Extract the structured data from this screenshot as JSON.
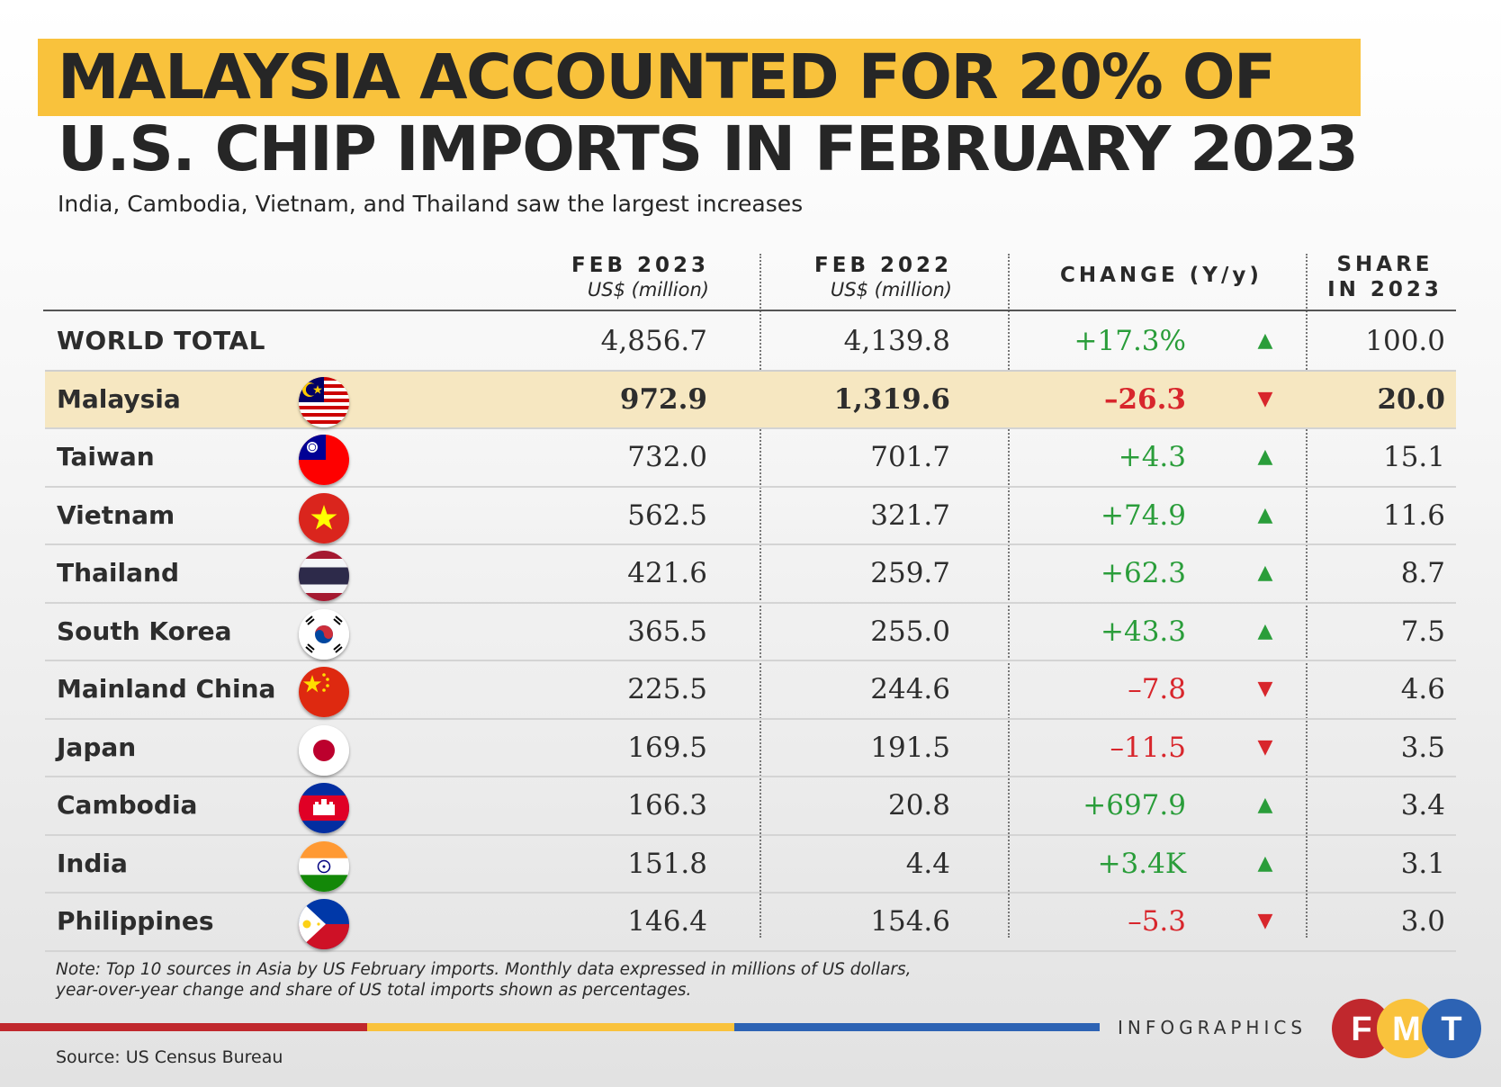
{
  "title_line1": "MALAYSIA ACCOUNTED FOR 20% OF",
  "title_line2": "U.S. CHIP IMPORTS IN FEBRUARY 2023",
  "subtitle": "India, Cambodia, Vietnam, and Thailand saw the largest increases",
  "headers": {
    "feb2023": "FEB 2023",
    "feb2023_unit": "US$ (million)",
    "feb2022": "FEB 2022",
    "feb2022_unit": "US$ (million)",
    "change": "CHANGE (Y/y)",
    "share_line1": "SHARE",
    "share_line2": "IN 2023"
  },
  "colors": {
    "highlight": "#f9c23c",
    "positive": "#2a9d3a",
    "negative": "#d8262c",
    "fmt_red": "#c0282d",
    "fmt_yellow": "#f9c23c",
    "fmt_blue": "#2d63b4"
  },
  "chart_data": {
    "type": "table",
    "title": "MALAYSIA ACCOUNTED FOR 20% OF U.S. CHIP IMPORTS IN FEBRUARY 2023",
    "subtitle": "India, Cambodia, Vietnam, and Thailand saw the largest increases",
    "columns": [
      "FEB 2023 US$ (million)",
      "FEB 2022 US$ (million)",
      "CHANGE (Y/y)",
      "SHARE IN 2023"
    ],
    "rows": [
      {
        "name": "WORLD TOTAL",
        "flag": "",
        "feb2023": "4,856.7",
        "feb2022": "4,139.8",
        "change": "+17.3%",
        "direction": "up",
        "share": "100.0",
        "highlight": false,
        "world": true
      },
      {
        "name": "Malaysia",
        "flag": "malaysia-flag-icon",
        "feb2023": "972.9",
        "feb2022": "1,319.6",
        "change": "–26.3",
        "direction": "down",
        "share": "20.0",
        "highlight": true
      },
      {
        "name": "Taiwan",
        "flag": "taiwan-flag-icon",
        "feb2023": "732.0",
        "feb2022": "701.7",
        "change": "+4.3",
        "direction": "up",
        "share": "15.1"
      },
      {
        "name": "Vietnam",
        "flag": "vietnam-flag-icon",
        "feb2023": "562.5",
        "feb2022": "321.7",
        "change": "+74.9",
        "direction": "up",
        "share": "11.6"
      },
      {
        "name": "Thailand",
        "flag": "thailand-flag-icon",
        "feb2023": "421.6",
        "feb2022": "259.7",
        "change": "+62.3",
        "direction": "up",
        "share": "8.7"
      },
      {
        "name": "South Korea",
        "flag": "south-korea-flag-icon",
        "feb2023": "365.5",
        "feb2022": "255.0",
        "change": "+43.3",
        "direction": "up",
        "share": "7.5"
      },
      {
        "name": "Mainland China",
        "flag": "china-flag-icon",
        "feb2023": "225.5",
        "feb2022": "244.6",
        "change": "–7.8",
        "direction": "down",
        "share": "4.6"
      },
      {
        "name": "Japan",
        "flag": "japan-flag-icon",
        "feb2023": "169.5",
        "feb2022": "191.5",
        "change": "–11.5",
        "direction": "down",
        "share": "3.5"
      },
      {
        "name": "Cambodia",
        "flag": "cambodia-flag-icon",
        "feb2023": "166.3",
        "feb2022": "20.8",
        "change": "+697.9",
        "direction": "up",
        "share": "3.4"
      },
      {
        "name": "India",
        "flag": "india-flag-icon",
        "feb2023": "151.8",
        "feb2022": "4.4",
        "change": "+3.4K",
        "direction": "up",
        "share": "3.1"
      },
      {
        "name": "Philippines",
        "flag": "philippines-flag-icon",
        "feb2023": "146.4",
        "feb2022": "154.6",
        "change": "–5.3",
        "direction": "down",
        "share": "3.0"
      }
    ]
  },
  "note_line1": "Note: Top 10 sources in Asia by US February imports. Monthly data expressed in millions of US dollars,",
  "note_line2": "year-over-year change and share of US total imports shown as percentages.",
  "brand_label": "INFOGRAPHICS",
  "logo_letters": [
    "F",
    "M",
    "T"
  ],
  "source": "Source: US Census Bureau"
}
